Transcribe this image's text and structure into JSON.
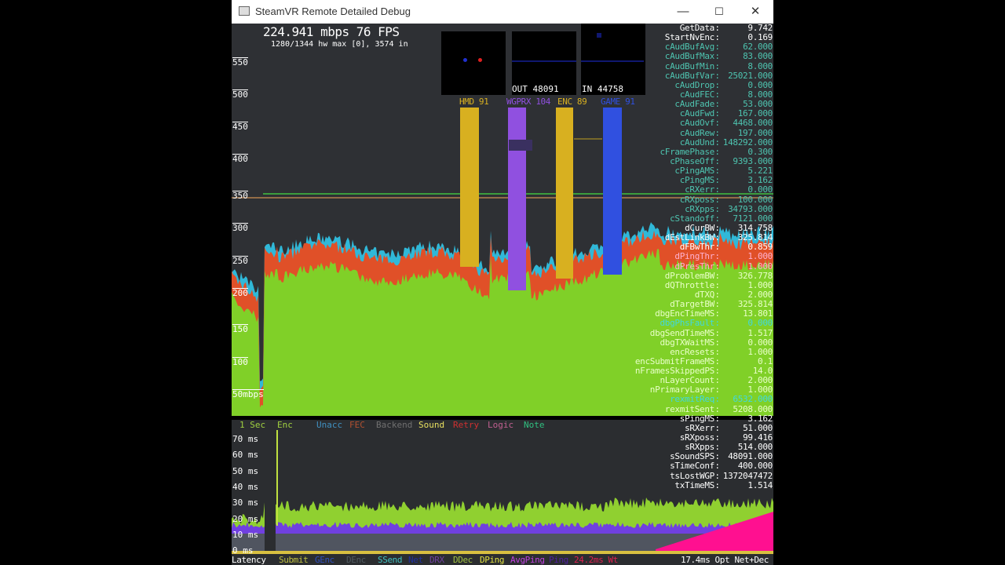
{
  "window": {
    "title": "SteamVR Remote Detailed Debug",
    "minimize": "—",
    "maximize": "☐",
    "close": "✕"
  },
  "header": {
    "rate": "224.941 mbps  76 FPS",
    "detail": "1280/1344 hw max [0], 3574 in"
  },
  "boxes": [
    {
      "label": ""
    },
    {
      "label": "OUT 48091"
    },
    {
      "label": "IN 44758"
    }
  ],
  "bars": [
    {
      "label": "HMD 91",
      "color": "#d8b020"
    },
    {
      "label": "WGPRX 104",
      "color": "#9050e0"
    },
    {
      "label": "ENC 89",
      "color": "#d8b020"
    },
    {
      "label": "GAME 91",
      "color": "#3050e0"
    }
  ],
  "y_axis": [
    "550",
    "500",
    "450",
    "400",
    "350",
    "300",
    "250",
    "200",
    "150",
    "100",
    "50mbps"
  ],
  "stats": [
    {
      "k": "GetData",
      "v": "9.742",
      "c": "#ffffff"
    },
    {
      "k": "StartNvEnc",
      "v": "0.169",
      "c": "#ffffff"
    },
    {
      "k": "cAudBufAvg",
      "v": "62.000",
      "c": "#4ec4b0"
    },
    {
      "k": "cAudBufMax",
      "v": "83.000",
      "c": "#4ec4b0"
    },
    {
      "k": "cAudBufMin",
      "v": "8.000",
      "c": "#4ec4b0"
    },
    {
      "k": "cAudBufVar",
      "v": "25021.000",
      "c": "#4ec4b0"
    },
    {
      "k": "cAudDrop",
      "v": "0.000",
      "c": "#4ec4b0"
    },
    {
      "k": "cAudFEC",
      "v": "8.000",
      "c": "#4ec4b0"
    },
    {
      "k": "cAudFade",
      "v": "53.000",
      "c": "#4ec4b0"
    },
    {
      "k": "cAudFwd",
      "v": "167.000",
      "c": "#4ec4b0"
    },
    {
      "k": "cAudOvf",
      "v": "4468.000",
      "c": "#4ec4b0"
    },
    {
      "k": "cAudRew",
      "v": "197.000",
      "c": "#4ec4b0"
    },
    {
      "k": "cAudUnd",
      "v": "148292.000",
      "c": "#4ec4b0"
    },
    {
      "k": "cFramePhase",
      "v": "0.300",
      "c": "#4ec4b0"
    },
    {
      "k": "cPhaseOff",
      "v": "9393.000",
      "c": "#4ec4b0"
    },
    {
      "k": "cPingAMS",
      "v": "5.221",
      "c": "#4ec4b0"
    },
    {
      "k": "cPingMS",
      "v": "3.162",
      "c": "#4ec4b0"
    },
    {
      "k": "cRXerr",
      "v": "0.000",
      "c": "#4ec4b0"
    },
    {
      "k": "cRXposs",
      "v": "100.000",
      "c": "#4ec4b0"
    },
    {
      "k": "cRXpps",
      "v": "34793.000",
      "c": "#4ec4b0"
    },
    {
      "k": "cStandoff",
      "v": "7121.000",
      "c": "#4ec4b0"
    },
    {
      "k": "dCurBW",
      "v": "314.758",
      "c": "#ffffff"
    },
    {
      "k": "dEstLinkBW",
      "v": "325.814",
      "c": "#ffffff"
    },
    {
      "k": "dFBwThr",
      "v": "0.859",
      "c": "#ffffff"
    },
    {
      "k": "dPingThr",
      "v": "1.000",
      "c": "#ffb0d0"
    },
    {
      "k": "dPresThr",
      "v": "1.000",
      "c": "#ffb0d0"
    },
    {
      "k": "dProblemBW",
      "v": "326.778",
      "c": "#e8ffc8"
    },
    {
      "k": "dQThrottle",
      "v": "1.000",
      "c": "#e8ffc8"
    },
    {
      "k": "dTXQ",
      "v": "2.000",
      "c": "#e8ffc8"
    },
    {
      "k": "dTargetBW",
      "v": "325.814",
      "c": "#e8ffc8"
    },
    {
      "k": "dbgEncTimeMS",
      "v": "13.801",
      "c": "#e8ffc8"
    },
    {
      "k": "dbgPhsFault",
      "v": "0.000",
      "c": "#40d8e0"
    },
    {
      "k": "dbgSendTimeMS",
      "v": "1.517",
      "c": "#e8ffc8"
    },
    {
      "k": "dbgTXWaitMS",
      "v": "0.000",
      "c": "#e8ffc8"
    },
    {
      "k": "encResets",
      "v": "1.000",
      "c": "#e8ffc8"
    },
    {
      "k": "encSubmitFrameMS",
      "v": "0.1",
      "c": "#e8ffc8"
    },
    {
      "k": "nFramesSkippedPS",
      "v": "14.0",
      "c": "#e8ffc8"
    },
    {
      "k": "nLayerCount",
      "v": "2.000",
      "c": "#e8ffc8"
    },
    {
      "k": "nPrimaryLayer",
      "v": "1.000",
      "c": "#e8ffc8"
    },
    {
      "k": "rexmitReq",
      "v": "6532.000",
      "c": "#40d8e0"
    },
    {
      "k": "rexmitSent",
      "v": "5208.000",
      "c": "#e8ffc8"
    },
    {
      "k": "sPingMS",
      "v": "3.162",
      "c": "#ffffff"
    },
    {
      "k": "sRXerr",
      "v": "51.000",
      "c": "#ffffff"
    },
    {
      "k": "sRXposs",
      "v": "99.416",
      "c": "#ffffff"
    },
    {
      "k": "sRXpps",
      "v": "514.000",
      "c": "#ffffff"
    },
    {
      "k": "sSoundSPS",
      "v": "48091.000",
      "c": "#ffffff"
    },
    {
      "k": "sTimeConf",
      "v": "400.000",
      "c": "#ffffff"
    },
    {
      "k": "tsLostWGP",
      "v": "1372047472",
      "c": "#ffffff"
    },
    {
      "k": "txTimeMS",
      "v": "1.514",
      "c": "#ffffff"
    }
  ],
  "legend": [
    {
      "t": "1 Sec",
      "c": "#a0d040"
    },
    {
      "t": "Enc",
      "c": "#a0d040"
    },
    {
      "t": "Unacc",
      "c": "#4090c0"
    },
    {
      "t": "FEC",
      "c": "#b05030"
    },
    {
      "t": "Backend",
      "c": "#707070"
    },
    {
      "t": "Sound",
      "c": "#e8e060"
    },
    {
      "t": "Retry",
      "c": "#d03030"
    },
    {
      "t": "Logic",
      "c": "#c06090"
    },
    {
      "t": "Note",
      "c": "#30c080"
    }
  ],
  "ms_axis": [
    "70 ms",
    "60 ms",
    "50 ms",
    "40 ms",
    "30 ms",
    "20 ms",
    "10 ms",
    "0 ms"
  ],
  "bottom_legend": [
    {
      "t": "Latency",
      "c": "#ffffff"
    },
    {
      "t": "Submit",
      "c": "#c0c040"
    },
    {
      "t": "GEnc",
      "c": "#3050c0"
    },
    {
      "t": "DEnc",
      "c": "#505a60"
    },
    {
      "t": "SSend",
      "c": "#40c0c0"
    },
    {
      "t": "Net",
      "c": "#2030a0"
    },
    {
      "t": "DRX",
      "c": "#7040a0"
    },
    {
      "t": "DDec",
      "c": "#a0c040"
    },
    {
      "t": "DPing",
      "c": "#e0e040"
    },
    {
      "t": "AvgPing",
      "c": "#c040e0"
    },
    {
      "t": "Ping",
      "c": "#5020a0"
    },
    {
      "t": "24.2ms Wt",
      "c": "#e02050"
    },
    {
      "t": "17.4ms Opt Net+Dec",
      "c": "#ffffff"
    }
  ]
}
